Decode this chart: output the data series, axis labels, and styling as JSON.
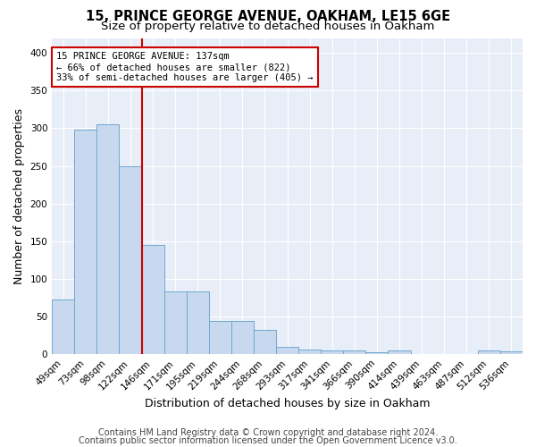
{
  "title1": "15, PRINCE GEORGE AVENUE, OAKHAM, LE15 6GE",
  "title2": "Size of property relative to detached houses in Oakham",
  "xlabel": "Distribution of detached houses by size in Oakham",
  "ylabel": "Number of detached properties",
  "footer1": "Contains HM Land Registry data © Crown copyright and database right 2024.",
  "footer2": "Contains public sector information licensed under the Open Government Licence v3.0.",
  "bin_labels": [
    "49sqm",
    "73sqm",
    "98sqm",
    "122sqm",
    "146sqm",
    "171sqm",
    "195sqm",
    "219sqm",
    "244sqm",
    "268sqm",
    "293sqm",
    "317sqm",
    "341sqm",
    "366sqm",
    "390sqm",
    "414sqm",
    "439sqm",
    "463sqm",
    "487sqm",
    "512sqm",
    "536sqm"
  ],
  "bar_values": [
    72,
    298,
    305,
    249,
    145,
    83,
    83,
    44,
    44,
    32,
    9,
    6,
    5,
    5,
    2,
    4,
    0,
    0,
    0,
    4,
    3
  ],
  "bar_color": "#c8d8ee",
  "bar_edge_color": "#6fa8d0",
  "red_line_x": 4,
  "annotation_line1": "15 PRINCE GEORGE AVENUE: 137sqm",
  "annotation_line2": "← 66% of detached houses are smaller (822)",
  "annotation_line3": "33% of semi-detached houses are larger (405) →",
  "annotation_box_facecolor": "#ffffff",
  "annotation_box_edgecolor": "#cc0000",
  "ylim": [
    0,
    420
  ],
  "yticks": [
    0,
    50,
    100,
    150,
    200,
    250,
    300,
    350,
    400
  ],
  "fig_facecolor": "#ffffff",
  "ax_facecolor": "#e8eef8",
  "grid_color": "#ffffff",
  "title1_fontsize": 10.5,
  "title2_fontsize": 9.5,
  "xlabel_fontsize": 9,
  "ylabel_fontsize": 9,
  "tick_fontsize": 7.5,
  "annotation_fontsize": 7.5,
  "footer_fontsize": 7
}
